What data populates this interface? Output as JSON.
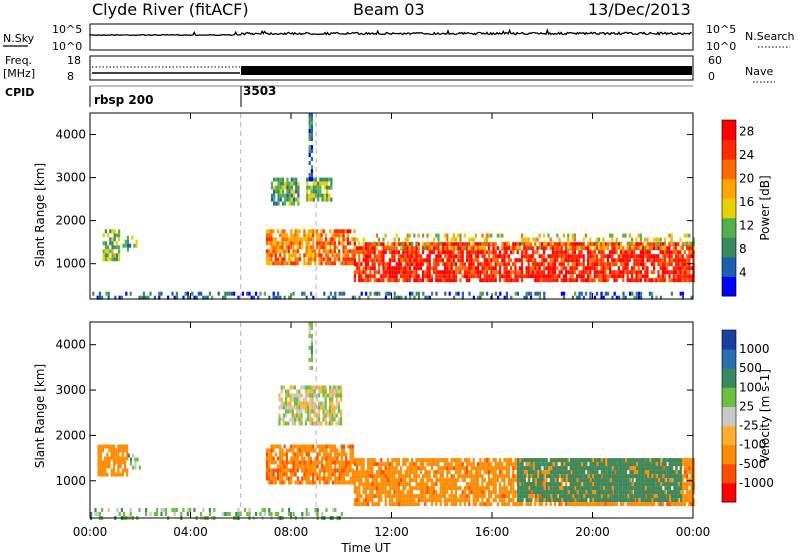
{
  "header": {
    "station": "Clyde River (fitACF)",
    "beam": "Beam 03",
    "date": "13/Dec/2013"
  },
  "top_strip": {
    "nsky_label": "N.Sky",
    "nsearch_label": "N.Search",
    "freq_label_1": "Freq.",
    "freq_label_2": "[MHz]",
    "nave_label": "Nave",
    "cpid_label": "CPID",
    "noise_ticks_left": [
      "10^5",
      "10^0"
    ],
    "noise_ticks_right": [
      "10^5",
      "10^0"
    ],
    "freq_ticks": [
      "18",
      "8"
    ],
    "nave_ticks": [
      "60",
      "0"
    ],
    "cpid_segments": [
      {
        "label": "rbsp 200",
        "start_hour": 0,
        "end_hour": 6
      },
      {
        "label": "3503",
        "start_hour": 6,
        "end_hour": 24
      }
    ]
  },
  "x_axis": {
    "label": "Time UT",
    "ticks": [
      "00:00",
      "04:00",
      "08:00",
      "12:00",
      "16:00",
      "20:00",
      "00:00"
    ],
    "tick_hours": [
      0,
      4,
      8,
      12,
      16,
      20,
      24
    ],
    "range_hours": [
      0,
      24
    ]
  },
  "colors": {
    "power_scale": [
      "#0000ff",
      "#1f5fb0",
      "#3a8a60",
      "#55b04a",
      "#e8d000",
      "#ffa500",
      "#ff6a00",
      "#ff2a00",
      "#ff0000"
    ],
    "velocity_scale": [
      "#ff0000",
      "#ff4d00",
      "#ff8c00",
      "#ffb030",
      "#c8c8c8",
      "#6cc040",
      "#3a8a60",
      "#2a6fb0",
      "#1b3fa0"
    ],
    "dashed_marker": "#a0a0a0"
  },
  "chart_data": [
    {
      "type": "heatmap",
      "title": "Power",
      "xlabel": "Time UT",
      "ylabel": "Slant Range [km]",
      "ylim": [
        180,
        4500
      ],
      "y_ticks": [
        1000,
        2000,
        3000,
        4000
      ],
      "colorbar_label": "Power [dB]",
      "colorbar_ticks": [
        "28",
        "24",
        "20",
        "16",
        "12",
        "8",
        "4"
      ],
      "colorbar_tick_values": [
        28,
        24,
        20,
        16,
        12,
        8,
        4
      ],
      "colorbar_range": [
        0,
        30
      ],
      "regions": [
        {
          "t0": 0.5,
          "t1": 1.2,
          "r0": 1100,
          "r1": 1800,
          "value": 12
        },
        {
          "t0": 1.2,
          "t1": 1.9,
          "r0": 1300,
          "r1": 1650,
          "value": 10
        },
        {
          "t0": 7.0,
          "t1": 9.0,
          "r0": 1000,
          "r1": 1800,
          "value": 20
        },
        {
          "t0": 9.0,
          "t1": 10.5,
          "r0": 1000,
          "r1": 1800,
          "value": 22
        },
        {
          "t0": 7.2,
          "t1": 8.3,
          "r0": 2400,
          "r1": 3000,
          "value": 10
        },
        {
          "t0": 8.6,
          "t1": 9.6,
          "r0": 2500,
          "r1": 3000,
          "value": 12
        },
        {
          "t0": 10.5,
          "t1": 24.0,
          "r0": 600,
          "r1": 1500,
          "value": 26
        },
        {
          "t0": 10.5,
          "t1": 24.0,
          "r0": 1400,
          "r1": 1700,
          "value": 16
        },
        {
          "t0": 0.0,
          "t1": 24.0,
          "r0": 200,
          "r1": 350,
          "value": 6
        },
        {
          "t0": 8.7,
          "t1": 8.8,
          "r0": 3000,
          "r1": 4500,
          "value": 6
        }
      ]
    },
    {
      "type": "heatmap",
      "title": "Velocity",
      "xlabel": "Time UT",
      "ylabel": "Slant Range [km]",
      "ylim": [
        180,
        4500
      ],
      "y_ticks": [
        1000,
        2000,
        3000,
        4000
      ],
      "colorbar_label": "Velocity [m s-1]",
      "colorbar_ticks": [
        "1000",
        "500",
        "100",
        "25",
        "-25",
        "-100",
        "-500",
        "-1000"
      ],
      "colorbar_tick_values": [
        1000,
        500,
        100,
        25,
        -25,
        -100,
        -500,
        -1000
      ],
      "regions": [
        {
          "t0": 0.3,
          "t1": 1.5,
          "r0": 1100,
          "r1": 1800,
          "value": -300
        },
        {
          "t0": 1.5,
          "t1": 2.0,
          "r0": 1300,
          "r1": 1600,
          "value": 50
        },
        {
          "t0": 7.0,
          "t1": 10.5,
          "r0": 1000,
          "r1": 1800,
          "value": -400
        },
        {
          "t0": 7.5,
          "t1": 10.0,
          "r0": 2300,
          "r1": 3100,
          "value": 0
        },
        {
          "t0": 10.5,
          "t1": 24.0,
          "r0": 500,
          "r1": 1500,
          "value": -350
        },
        {
          "t0": 17.0,
          "t1": 23.5,
          "r0": 600,
          "r1": 1500,
          "value": 300
        },
        {
          "t0": 0.0,
          "t1": 10.0,
          "r0": 200,
          "r1": 400,
          "value": 60
        },
        {
          "t0": 8.7,
          "t1": 8.8,
          "r0": 3500,
          "r1": 4500,
          "value": 60
        }
      ]
    }
  ]
}
